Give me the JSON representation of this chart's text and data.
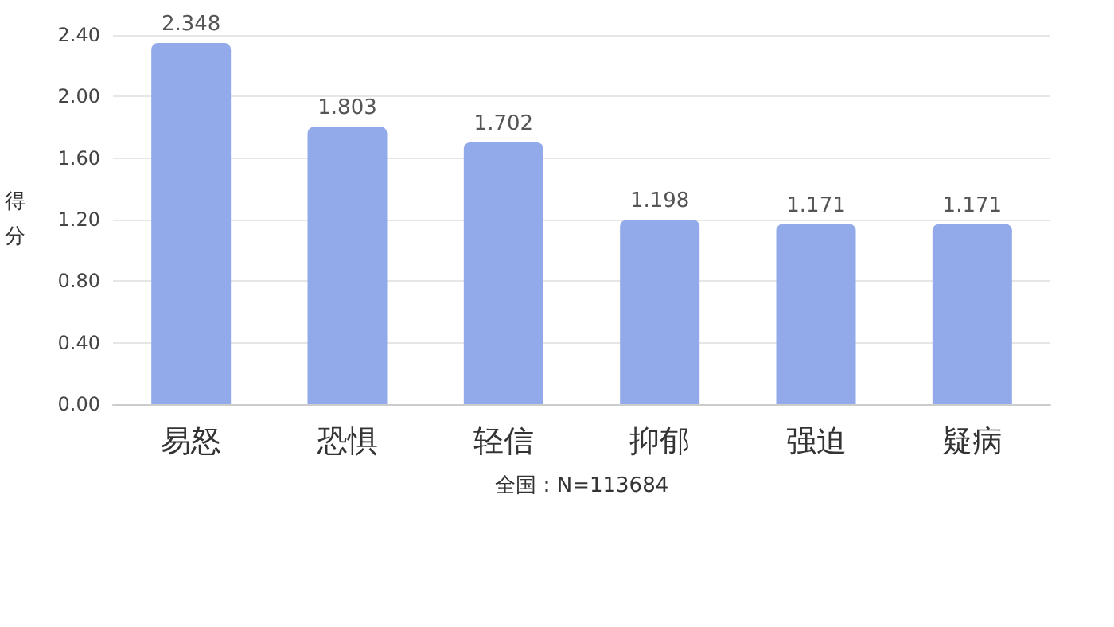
{
  "chart_data": {
    "type": "bar",
    "categories": [
      "易怒",
      "恐惧",
      "轻信",
      "抑郁",
      "强迫",
      "疑病"
    ],
    "values": [
      2.348,
      1.803,
      1.702,
      1.198,
      1.171,
      1.171
    ],
    "color": "#92aaea",
    "ylabel": "得分",
    "xlabel": "全国：N=113684",
    "data_labels": true,
    "grid": "y",
    "ylim": [
      0,
      2.4
    ],
    "yticks": [
      {
        "value": 0,
        "label": "0.00"
      },
      {
        "value": 0.4,
        "label": "0.40"
      },
      {
        "value": 0.8,
        "label": "0.80"
      },
      {
        "value": 1.2,
        "label": "1.20"
      },
      {
        "value": 1.6,
        "label": "1.60"
      },
      {
        "value": 2.0,
        "label": "2.00"
      },
      {
        "value": 2.4,
        "label": "2.40"
      }
    ]
  }
}
